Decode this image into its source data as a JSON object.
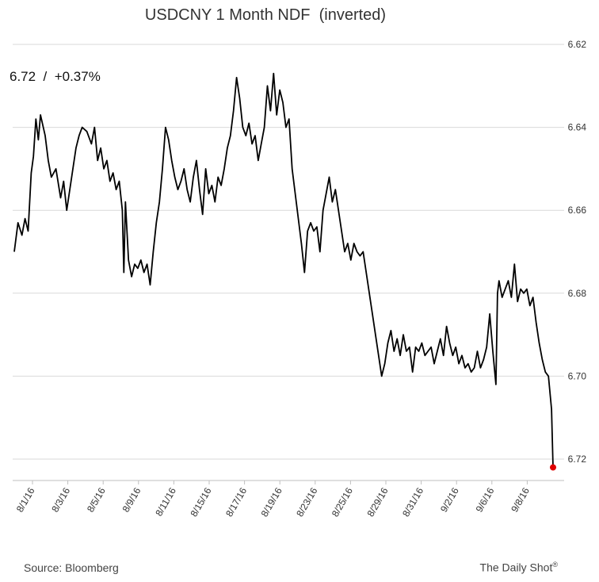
{
  "chart_data": {
    "type": "line",
    "title": "USDCNY 1 Month NDF  (inverted)",
    "annotation": "6.72  /  +0.37%",
    "source": "Source: Bloomberg",
    "brand": "The Daily Shot",
    "brand_mark": "®",
    "xlabel": "",
    "ylabel": "",
    "y_axis": {
      "position": "right",
      "inverted": true,
      "range": [
        6.62,
        6.72
      ],
      "ticks": [
        "6.62",
        "6.64",
        "6.66",
        "6.68",
        "6.70",
        "6.72"
      ],
      "grid": true
    },
    "x_tick_labels": [
      "8/1/16",
      "8/3/16",
      "8/5/16",
      "8/9/16",
      "8/11/16",
      "8/15/16",
      "8/17/16",
      "8/19/16",
      "8/23/16",
      "8/25/16",
      "8/29/16",
      "8/31/16",
      "9/2/16",
      "9/6/16",
      "9/8/16"
    ],
    "last_point_color": "#e00000",
    "line_color": "#000000",
    "series": [
      {
        "points": [
          [
            0.0,
            6.67
          ],
          [
            0.12,
            6.663
          ],
          [
            0.25,
            6.666
          ],
          [
            0.35,
            6.662
          ],
          [
            0.45,
            6.665
          ],
          [
            0.55,
            6.651
          ],
          [
            0.62,
            6.647
          ],
          [
            0.7,
            6.638
          ],
          [
            0.78,
            6.643
          ],
          [
            0.85,
            6.637
          ],
          [
            1.0,
            6.642
          ],
          [
            1.1,
            6.648
          ],
          [
            1.2,
            6.652
          ],
          [
            1.35,
            6.65
          ],
          [
            1.5,
            6.657
          ],
          [
            1.6,
            6.653
          ],
          [
            1.7,
            6.66
          ],
          [
            1.8,
            6.655
          ],
          [
            1.9,
            6.65
          ],
          [
            2.0,
            6.645
          ],
          [
            2.1,
            6.642
          ],
          [
            2.2,
            6.64
          ],
          [
            2.35,
            6.641
          ],
          [
            2.5,
            6.644
          ],
          [
            2.6,
            6.64
          ],
          [
            2.7,
            6.648
          ],
          [
            2.8,
            6.645
          ],
          [
            2.9,
            6.65
          ],
          [
            3.0,
            6.648
          ],
          [
            3.1,
            6.653
          ],
          [
            3.2,
            6.651
          ],
          [
            3.3,
            6.655
          ],
          [
            3.4,
            6.653
          ],
          [
            3.5,
            6.66
          ],
          [
            3.55,
            6.675
          ],
          [
            3.6,
            6.658
          ],
          [
            3.7,
            6.672
          ],
          [
            3.8,
            6.676
          ],
          [
            3.9,
            6.673
          ],
          [
            4.0,
            6.674
          ],
          [
            4.1,
            6.672
          ],
          [
            4.2,
            6.675
          ],
          [
            4.3,
            6.673
          ],
          [
            4.4,
            6.678
          ],
          [
            4.5,
            6.67
          ],
          [
            4.6,
            6.663
          ],
          [
            4.7,
            6.658
          ],
          [
            4.8,
            6.65
          ],
          [
            4.9,
            6.64
          ],
          [
            5.0,
            6.643
          ],
          [
            5.1,
            6.648
          ],
          [
            5.2,
            6.652
          ],
          [
            5.3,
            6.655
          ],
          [
            5.4,
            6.653
          ],
          [
            5.5,
            6.65
          ],
          [
            5.6,
            6.655
          ],
          [
            5.7,
            6.658
          ],
          [
            5.8,
            6.652
          ],
          [
            5.9,
            6.648
          ],
          [
            6.0,
            6.655
          ],
          [
            6.1,
            6.661
          ],
          [
            6.2,
            6.65
          ],
          [
            6.3,
            6.656
          ],
          [
            6.4,
            6.654
          ],
          [
            6.5,
            6.658
          ],
          [
            6.6,
            6.652
          ],
          [
            6.7,
            6.654
          ],
          [
            6.8,
            6.65
          ],
          [
            6.9,
            6.645
          ],
          [
            7.0,
            6.642
          ],
          [
            7.1,
            6.636
          ],
          [
            7.2,
            6.628
          ],
          [
            7.3,
            6.633
          ],
          [
            7.4,
            6.64
          ],
          [
            7.5,
            6.642
          ],
          [
            7.6,
            6.639
          ],
          [
            7.7,
            6.644
          ],
          [
            7.8,
            6.642
          ],
          [
            7.9,
            6.648
          ],
          [
            8.0,
            6.644
          ],
          [
            8.1,
            6.64
          ],
          [
            8.2,
            6.63
          ],
          [
            8.3,
            6.636
          ],
          [
            8.4,
            6.627
          ],
          [
            8.5,
            6.637
          ],
          [
            8.6,
            6.631
          ],
          [
            8.7,
            6.634
          ],
          [
            8.8,
            6.64
          ],
          [
            8.9,
            6.638
          ],
          [
            9.0,
            6.65
          ],
          [
            9.1,
            6.656
          ],
          [
            9.2,
            6.662
          ],
          [
            9.3,
            6.668
          ],
          [
            9.4,
            6.675
          ],
          [
            9.5,
            6.665
          ],
          [
            9.6,
            6.663
          ],
          [
            9.7,
            6.665
          ],
          [
            9.8,
            6.664
          ],
          [
            9.9,
            6.67
          ],
          [
            10.0,
            6.66
          ],
          [
            10.1,
            6.656
          ],
          [
            10.2,
            6.652
          ],
          [
            10.3,
            6.658
          ],
          [
            10.4,
            6.655
          ],
          [
            10.5,
            6.66
          ],
          [
            10.6,
            6.665
          ],
          [
            10.7,
            6.67
          ],
          [
            10.8,
            6.668
          ],
          [
            10.9,
            6.672
          ],
          [
            11.0,
            6.668
          ],
          [
            11.1,
            6.67
          ],
          [
            11.2,
            6.671
          ],
          [
            11.3,
            6.67
          ],
          [
            11.4,
            6.675
          ],
          [
            11.5,
            6.68
          ],
          [
            11.6,
            6.685
          ],
          [
            11.7,
            6.69
          ],
          [
            11.8,
            6.695
          ],
          [
            11.9,
            6.7
          ],
          [
            12.0,
            6.697
          ],
          [
            12.1,
            6.692
          ],
          [
            12.2,
            6.689
          ],
          [
            12.3,
            6.694
          ],
          [
            12.4,
            6.691
          ],
          [
            12.5,
            6.695
          ],
          [
            12.6,
            6.69
          ],
          [
            12.7,
            6.694
          ],
          [
            12.8,
            6.693
          ],
          [
            12.9,
            6.699
          ],
          [
            13.0,
            6.693
          ],
          [
            13.1,
            6.694
          ],
          [
            13.2,
            6.692
          ],
          [
            13.3,
            6.695
          ],
          [
            13.4,
            6.694
          ],
          [
            13.5,
            6.693
          ],
          [
            13.6,
            6.697
          ],
          [
            13.7,
            6.694
          ],
          [
            13.8,
            6.691
          ],
          [
            13.9,
            6.695
          ],
          [
            14.0,
            6.688
          ],
          [
            14.1,
            6.692
          ],
          [
            14.2,
            6.695
          ],
          [
            14.3,
            6.693
          ],
          [
            14.4,
            6.697
          ],
          [
            14.5,
            6.695
          ],
          [
            14.6,
            6.698
          ],
          [
            14.7,
            6.697
          ],
          [
            14.8,
            6.699
          ],
          [
            14.9,
            6.698
          ],
          [
            15.0,
            6.694
          ],
          [
            15.1,
            6.698
          ],
          [
            15.2,
            6.696
          ],
          [
            15.3,
            6.693
          ],
          [
            15.4,
            6.685
          ],
          [
            15.5,
            6.694
          ],
          [
            15.6,
            6.702
          ],
          [
            15.65,
            6.68
          ],
          [
            15.7,
            6.677
          ],
          [
            15.8,
            6.681
          ],
          [
            15.9,
            6.679
          ],
          [
            16.0,
            6.677
          ],
          [
            16.1,
            6.681
          ],
          [
            16.2,
            6.673
          ],
          [
            16.3,
            6.682
          ],
          [
            16.4,
            6.679
          ],
          [
            16.5,
            6.68
          ],
          [
            16.6,
            6.679
          ],
          [
            16.7,
            6.683
          ],
          [
            16.8,
            6.681
          ],
          [
            16.9,
            6.687
          ],
          [
            17.0,
            6.692
          ],
          [
            17.1,
            6.696
          ],
          [
            17.2,
            6.699
          ],
          [
            17.3,
            6.7
          ],
          [
            17.4,
            6.708
          ],
          [
            17.45,
            6.722
          ]
        ]
      }
    ]
  }
}
